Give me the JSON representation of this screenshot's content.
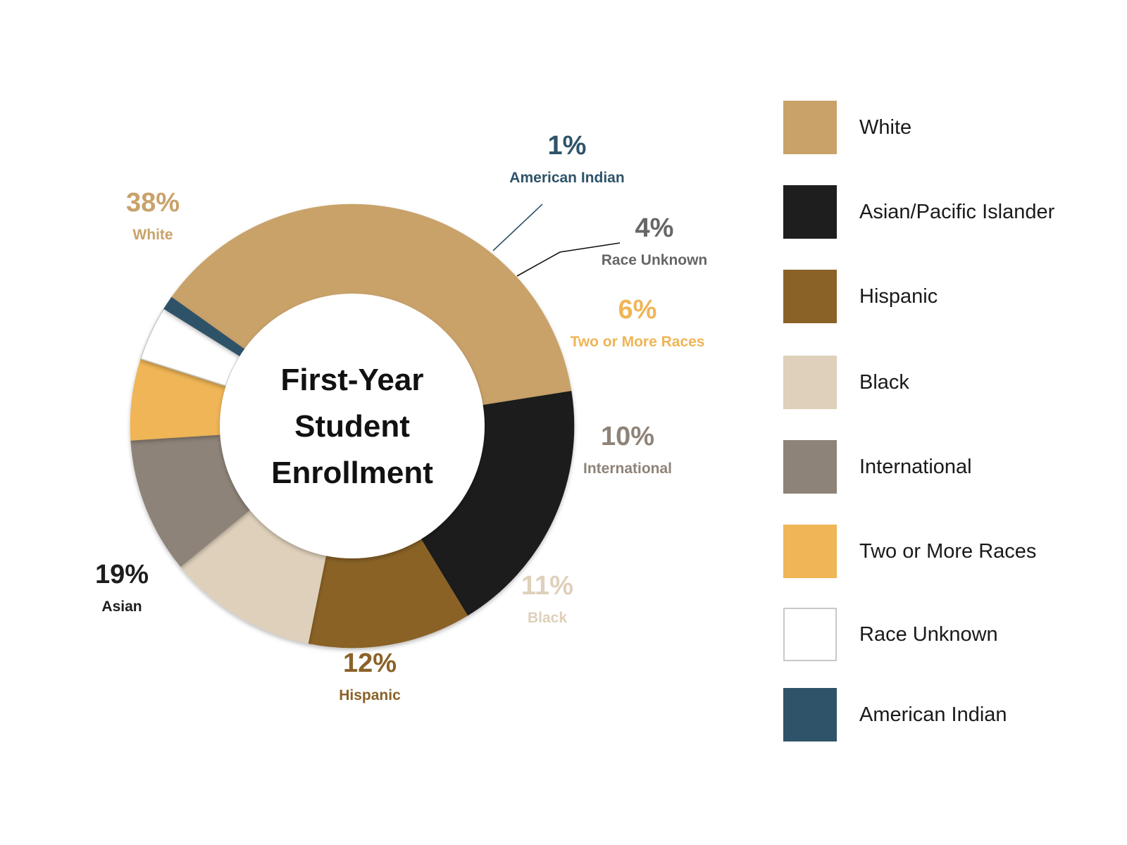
{
  "chart_data": {
    "type": "pie",
    "variant": "donut",
    "center_title": [
      "First-Year",
      "Student",
      "Enrollment"
    ],
    "slices": [
      {
        "name": "White",
        "value": 38,
        "pct_label": "38%",
        "callout": "White",
        "color": "#C9A26A"
      },
      {
        "name": "Asian/Pacific Islander",
        "value": 19,
        "pct_label": "19%",
        "callout": "Asian",
        "color": "#1E1E1E"
      },
      {
        "name": "Hispanic",
        "value": 12,
        "pct_label": "12%",
        "callout": "Hispanic",
        "color": "#8A6228"
      },
      {
        "name": "Black",
        "value": 11,
        "pct_label": "11%",
        "callout": "Black",
        "color": "#DED0BA"
      },
      {
        "name": "International",
        "value": 10,
        "pct_label": "10%",
        "callout": "International",
        "color": "#8E8378"
      },
      {
        "name": "Two or More Races",
        "value": 6,
        "pct_label": "6%",
        "callout": "Two or More Races",
        "color": "#EFB556"
      },
      {
        "name": "Race Unknown",
        "value": 4,
        "pct_label": "4%",
        "callout": "Race Unknown",
        "color": "#FFFFFF"
      },
      {
        "name": "American Indian",
        "value": 1,
        "pct_label": "1%",
        "callout": "American Indian",
        "color": "#2F5369"
      }
    ],
    "callout_colors": {
      "White": "#C9A26A",
      "Asian": "#1E1E1E",
      "Hispanic": "#8A6228",
      "Black": "#DED0BA",
      "International": "#8E8378",
      "Two or More Races": "#EFB556",
      "Race Unknown": "#666666",
      "American Indian": "#2F5369"
    },
    "legend": {
      "placement": "right",
      "items": [
        "White",
        "Asian/Pacific Islander",
        "Hispanic",
        "Black",
        "International",
        "Two or More Races",
        "Race Unknown",
        "American Indian"
      ]
    }
  }
}
